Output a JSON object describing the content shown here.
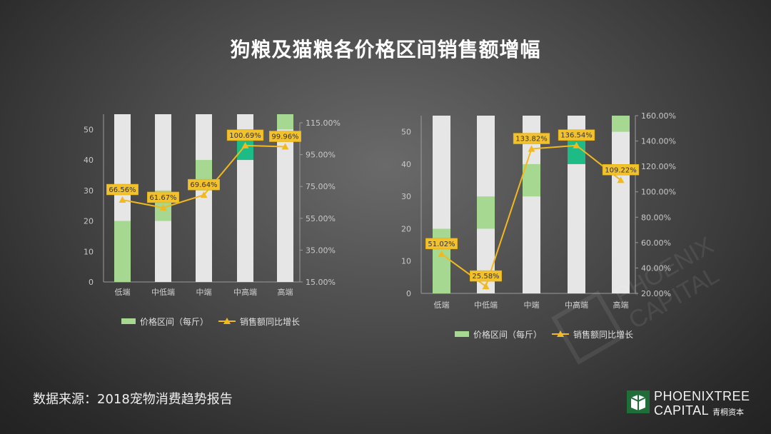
{
  "title": "狗粮及猫粮各价格区间销售额增幅",
  "source": "数据来源：2018宠物消费趋势报告",
  "logo": {
    "line1": "PHOENIXTREE",
    "line2": "CAPITAL",
    "cn": "青桐资本"
  },
  "colors": {
    "track": "#e6e6e6",
    "light_green": "#a6d892",
    "dark_green": "#1dbb86",
    "line": "#f2b91f",
    "label_bg": "#f2c12e"
  },
  "chart_data": [
    {
      "type": "bar+line",
      "categories": [
        "低端",
        "中低端",
        "中端",
        "中高端",
        "高端"
      ],
      "ylim_left": [
        0,
        55
      ],
      "yticks_left": [
        "0",
        "10",
        "20",
        "30",
        "40",
        "50"
      ],
      "ylim_right": [
        15,
        115
      ],
      "yticks_right": [
        "15.00%",
        "35.00%",
        "55.00%",
        "75.00%",
        "95.00%",
        "115.00%"
      ],
      "bars": [
        {
          "lower": 0,
          "upper": 20,
          "color": "light_green"
        },
        {
          "lower": 20,
          "upper": 30,
          "color": "light_green"
        },
        {
          "lower": 30,
          "upper": 40,
          "color": "light_green"
        },
        {
          "lower": 40,
          "upper": 50,
          "color": "dark_green"
        },
        {
          "lower": 50,
          "upper": 55,
          "color": "light_green"
        }
      ],
      "line_values": [
        66.56,
        61.67,
        69.64,
        100.69,
        99.96
      ],
      "line_labels": [
        "66.56%",
        "61.67%",
        "69.64%",
        "100.69%",
        "99.96%"
      ],
      "legend": [
        "价格区间（每斤）",
        "销售额同比增长"
      ]
    },
    {
      "type": "bar+line",
      "categories": [
        "低端",
        "中低端",
        "中端",
        "中高端",
        "高端"
      ],
      "ylim_left": [
        0,
        55
      ],
      "yticks_left": [
        "0",
        "10",
        "20",
        "30",
        "40",
        "50"
      ],
      "ylim_right": [
        20,
        160
      ],
      "yticks_right": [
        "20.00%",
        "40.00%",
        "60.00%",
        "80.00%",
        "100.00%",
        "120.00%",
        "140.00%",
        "160.00%"
      ],
      "bars": [
        {
          "lower": 0,
          "upper": 20,
          "color": "light_green"
        },
        {
          "lower": 20,
          "upper": 30,
          "color": "light_green"
        },
        {
          "lower": 30,
          "upper": 40,
          "color": "light_green"
        },
        {
          "lower": 40,
          "upper": 50,
          "color": "dark_green"
        },
        {
          "lower": 50,
          "upper": 55,
          "color": "light_green"
        }
      ],
      "line_values": [
        51.02,
        25.58,
        133.82,
        136.54,
        109.22
      ],
      "line_labels": [
        "51.02%",
        "25.58%",
        "133.82%",
        "136.54%",
        "109.22%"
      ],
      "legend": [
        "价格区间（每斤）",
        "销售额同比增长"
      ]
    }
  ]
}
